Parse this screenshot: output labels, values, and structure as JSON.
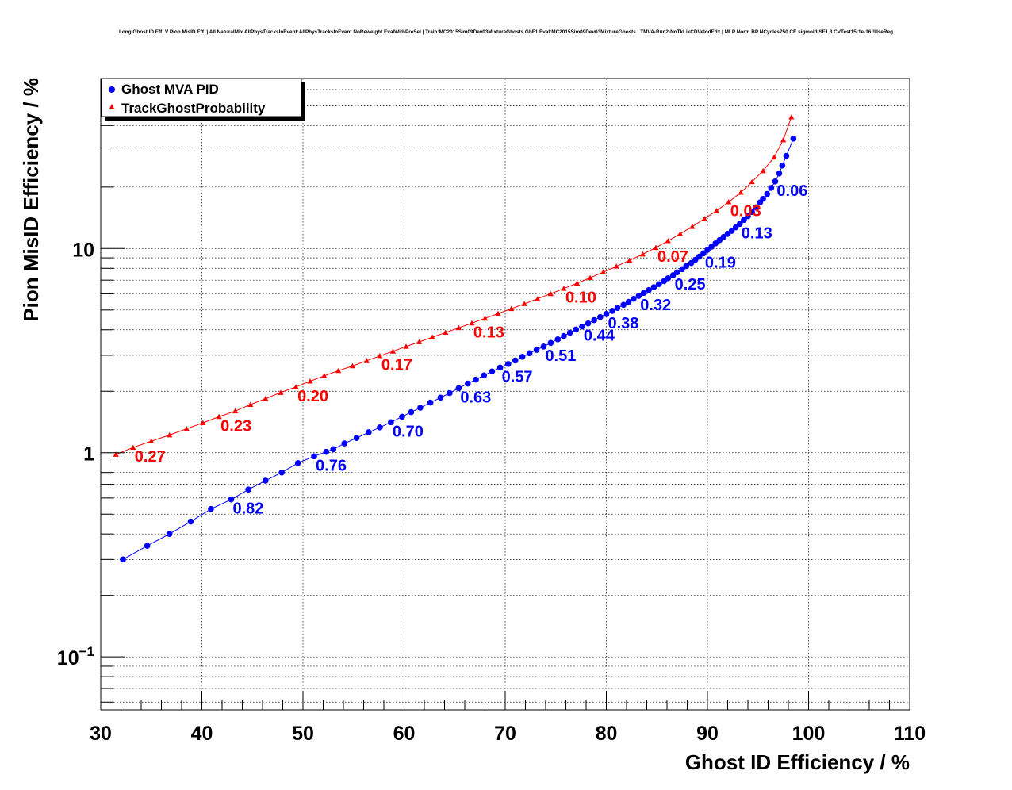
{
  "title": "Long Ghost ID Eff. V Pion MisID Eff. | All NaturalMix AllPhysTracksInEvent:AllPhysTracksInEvent NoReweight EvalWithPreSel | Train:MC2015Sim09Dev03MixtureGhosts GhF1 Eval:MC2015Sim09Dev03MixtureGhosts | TMVA-Run2-NoTkLikCDVelodEdx | MLP Norm BP NCycles750 CE sigmoid SF1.3 CVTest15:1e-16 !UseReg",
  "chart_data": {
    "type": "line",
    "title": "Long Ghost ID Eff. V Pion MisID Eff. | All NaturalMix AllPhysTracksInEvent:AllPhysTracksInEvent NoReweight EvalWithPreSel | Train:MC2015Sim09Dev03MixtureGhosts GhF1 Eval:MC2015Sim09Dev03MixtureGhosts | TMVA-Run2-NoTkLikCDVelodEdx | MLP Norm BP NCycles750 CE sigmoid SF1.3 CVTest15:1e-16 !UseReg",
    "xlabel": "Ghost ID Efficiency / %",
    "ylabel": "Pion MisID Efficiency / %",
    "xlim": [
      30,
      110
    ],
    "ylim": [
      0.055,
      68
    ],
    "yscale": "log",
    "x_ticks": [
      "30",
      "40",
      "50",
      "60",
      "70",
      "80",
      "90",
      "100",
      "110"
    ],
    "y_ticks": [
      {
        "value": 0.1,
        "base": "10",
        "exp": "−1"
      },
      {
        "value": 1,
        "base": "1",
        "exp": ""
      },
      {
        "value": 10,
        "base": "10",
        "exp": ""
      }
    ],
    "grid": true,
    "legend_position": "top-left",
    "series": [
      {
        "name": "Ghost MVA PID",
        "color": "#0000ff",
        "marker": "circle",
        "x": [
          32.2,
          34.6,
          36.8,
          38.9,
          40.9,
          42.9,
          44.6,
          46.3,
          47.9,
          49.5,
          51.1,
          52.3,
          53.0,
          54.1,
          55.3,
          56.5,
          57.6,
          58.7,
          59.8,
          60.7,
          61.6,
          62.6,
          63.6,
          64.5,
          65.4,
          66.3,
          67.1,
          67.9,
          68.7,
          69.5,
          70.3,
          71.0,
          71.7,
          72.4,
          73.1,
          73.8,
          74.5,
          75.2,
          75.8,
          76.4,
          77.0,
          77.6,
          78.2,
          78.8,
          79.4,
          80.0,
          80.6,
          81.1,
          81.7,
          82.2,
          82.7,
          83.2,
          83.7,
          84.2,
          84.7,
          85.2,
          85.7,
          86.1,
          86.6,
          87.0,
          87.5,
          87.9,
          88.4,
          88.8,
          89.2,
          89.6,
          90.0,
          90.4,
          90.8,
          91.2,
          91.6,
          92.0,
          92.4,
          92.8,
          93.2,
          93.6,
          94.0,
          94.4,
          94.8,
          95.2,
          95.5,
          95.9,
          96.3,
          96.7,
          97.1,
          97.4,
          97.8,
          98.5
        ],
        "y": [
          0.3,
          0.35,
          0.4,
          0.46,
          0.53,
          0.59,
          0.66,
          0.73,
          0.8,
          0.89,
          0.96,
          1.01,
          1.04,
          1.11,
          1.18,
          1.26,
          1.33,
          1.41,
          1.5,
          1.58,
          1.66,
          1.76,
          1.86,
          1.96,
          2.07,
          2.18,
          2.28,
          2.39,
          2.5,
          2.61,
          2.72,
          2.83,
          2.95,
          3.07,
          3.19,
          3.31,
          3.45,
          3.59,
          3.73,
          3.87,
          4.01,
          4.15,
          4.3,
          4.46,
          4.62,
          4.78,
          4.95,
          5.12,
          5.3,
          5.48,
          5.67,
          5.86,
          6.06,
          6.26,
          6.47,
          6.69,
          6.92,
          7.15,
          7.4,
          7.65,
          7.92,
          8.2,
          8.49,
          8.8,
          9.12,
          9.47,
          9.84,
          10.2,
          10.6,
          11.0,
          11.4,
          11.8,
          12.2,
          12.7,
          13.2,
          13.8,
          14.4,
          15.1,
          15.9,
          16.8,
          17.5,
          18.5,
          19.8,
          21.3,
          23.3,
          25.5,
          28.4,
          34.5
        ],
        "cut_labels": [
          {
            "text": "0.82",
            "x": 42.9,
            "y": 0.59
          },
          {
            "text": "0.76",
            "x": 51.1,
            "y": 0.96
          },
          {
            "text": "0.70",
            "x": 58.7,
            "y": 1.41
          },
          {
            "text": "0.63",
            "x": 65.4,
            "y": 2.07
          },
          {
            "text": "0.57",
            "x": 69.5,
            "y": 2.61
          },
          {
            "text": "0.51",
            "x": 73.8,
            "y": 3.31
          },
          {
            "text": "0.44",
            "x": 77.6,
            "y": 4.15
          },
          {
            "text": "0.38",
            "x": 80.0,
            "y": 4.78
          },
          {
            "text": "0.32",
            "x": 83.2,
            "y": 5.86
          },
          {
            "text": "0.25",
            "x": 86.6,
            "y": 7.4
          },
          {
            "text": "0.19",
            "x": 89.6,
            "y": 9.47
          },
          {
            "text": "0.13",
            "x": 93.2,
            "y": 13.2
          },
          {
            "text": "0.06",
            "x": 96.7,
            "y": 21.3
          }
        ]
      },
      {
        "name": "TrackGhostProbability",
        "color": "#ff0000",
        "marker": "triangle",
        "x": [
          31.5,
          33.2,
          35.0,
          36.8,
          38.5,
          40.1,
          41.7,
          43.3,
          44.8,
          46.3,
          47.8,
          49.3,
          50.7,
          52.1,
          53.5,
          54.9,
          56.3,
          57.6,
          58.9,
          60.2,
          61.5,
          62.8,
          64.1,
          65.4,
          66.7,
          68.0,
          69.3,
          70.6,
          71.9,
          73.2,
          74.5,
          75.8,
          77.1,
          78.4,
          79.7,
          81.0,
          82.3,
          83.6,
          84.9,
          86.1,
          87.3,
          88.5,
          89.7,
          90.9,
          92.1,
          93.3,
          94.4,
          95.5,
          96.6,
          97.5,
          98.3
        ],
        "y": [
          0.98,
          1.06,
          1.14,
          1.22,
          1.31,
          1.4,
          1.5,
          1.6,
          1.72,
          1.84,
          1.97,
          2.1,
          2.24,
          2.38,
          2.52,
          2.66,
          2.82,
          2.98,
          3.14,
          3.31,
          3.49,
          3.68,
          3.88,
          4.09,
          4.31,
          4.55,
          4.8,
          5.07,
          5.36,
          5.67,
          6.0,
          6.37,
          6.76,
          7.19,
          7.66,
          8.18,
          8.75,
          9.38,
          10.1,
          10.9,
          11.8,
          12.8,
          14.0,
          15.3,
          16.9,
          18.8,
          21.2,
          24.0,
          28.0,
          34.0,
          44.0
        ],
        "cut_labels": [
          {
            "text": "0.27",
            "x": 33.2,
            "y": 1.06
          },
          {
            "text": "0.23",
            "x": 41.7,
            "y": 1.5
          },
          {
            "text": "0.20",
            "x": 49.3,
            "y": 2.1
          },
          {
            "text": "0.17",
            "x": 57.6,
            "y": 2.98
          },
          {
            "text": "0.13",
            "x": 66.7,
            "y": 4.31
          },
          {
            "text": "0.10",
            "x": 75.8,
            "y": 6.37
          },
          {
            "text": "0.07",
            "x": 84.9,
            "y": 10.1
          },
          {
            "text": "0.03",
            "x": 92.1,
            "y": 16.9
          }
        ]
      }
    ]
  }
}
